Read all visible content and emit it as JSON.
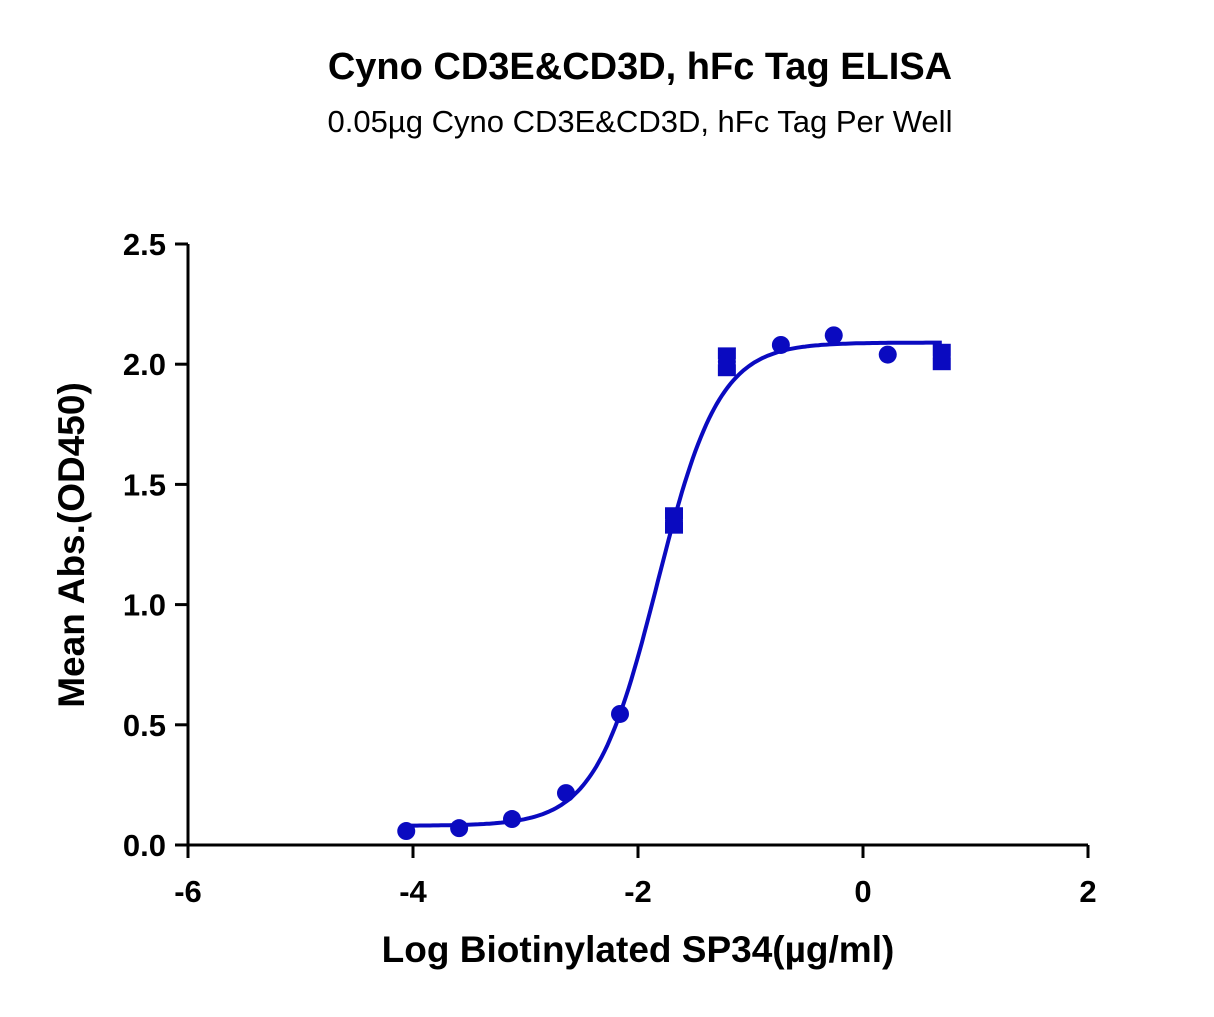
{
  "chart_data": {
    "type": "scatter",
    "title": "Cyno CD3E&CD3D, hFc Tag ELISA",
    "subtitle": "0.05µg Cyno CD3E&CD3D, hFc Tag Per Well",
    "xlabel": "Log Biotinylated SP34(µg/ml)",
    "ylabel": "Mean Abs.(OD450)",
    "xlim": [
      -6,
      2
    ],
    "ylim": [
      0,
      2.5
    ],
    "xticks": [
      -6,
      -4,
      -2,
      0,
      2
    ],
    "xtick_labels": [
      "-6",
      "-4",
      "-2",
      "0",
      "2"
    ],
    "yticks": [
      0,
      0.5,
      1,
      1.5,
      2,
      2.5
    ],
    "ytick_labels": [
      "0.0",
      "0.5",
      "1.0",
      "1.5",
      "2.0",
      "2.5"
    ],
    "grid": false,
    "color": "#0a0ac0",
    "series": [
      {
        "name": "Mean Abs.",
        "x": [
          -4.06,
          -3.59,
          -3.12,
          -2.64,
          -2.16,
          -1.68,
          -1.21,
          -0.73,
          -0.26,
          0.22,
          0.7
        ],
        "y": [
          0.058,
          0.07,
          0.108,
          0.216,
          0.545,
          1.35,
          2.01,
          2.08,
          2.12,
          2.04,
          2.03
        ],
        "err": [
          0,
          0,
          0,
          0,
          0,
          0.03,
          0.035,
          0,
          0,
          0,
          0.03
        ]
      }
    ],
    "fit": {
      "model": "4PL",
      "bottom": 0.08,
      "top": 2.09,
      "logEC50": -1.83,
      "hill_slope": 1.58,
      "x_range": [
        -4.06,
        0.7
      ]
    }
  }
}
